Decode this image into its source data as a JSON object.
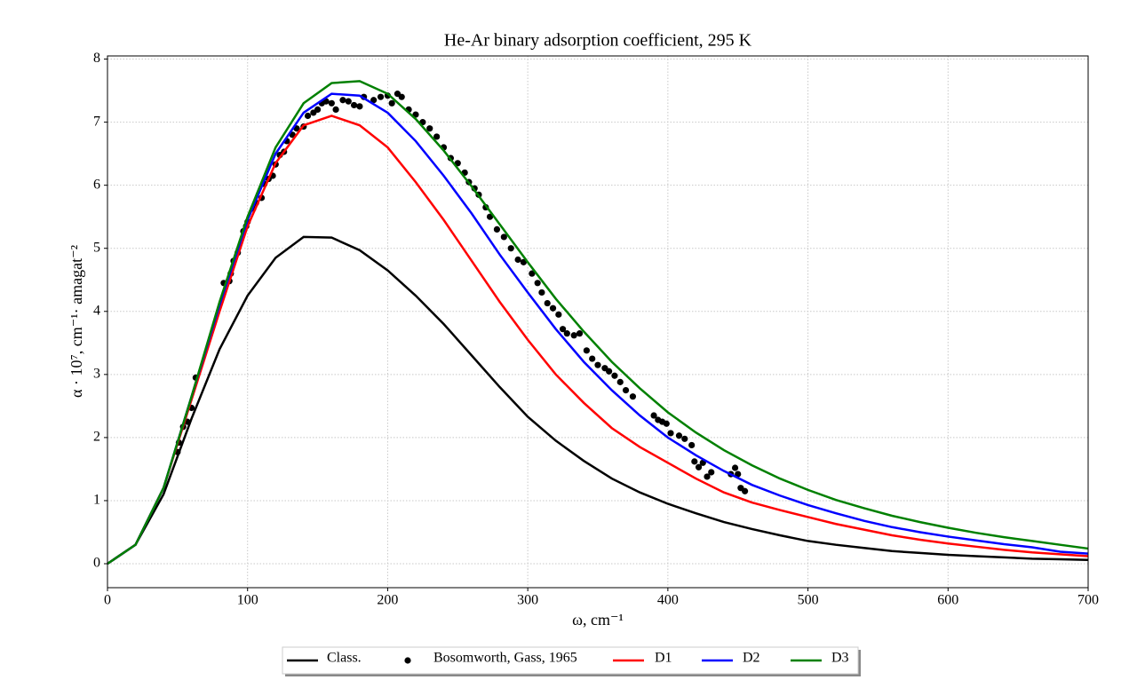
{
  "chart_data": {
    "type": "line",
    "title": "He-Ar binary adsorption coefficient, 295 K",
    "x_label": "ω, cm⁻¹",
    "y_label": "α · 10⁷, cm⁻¹· amagat⁻²",
    "xlim": [
      0,
      700
    ],
    "ylim": [
      -0.38,
      8.05
    ],
    "xticks": [
      0,
      100,
      200,
      300,
      400,
      500,
      600,
      700
    ],
    "yticks": [
      0,
      1,
      2,
      3,
      4,
      5,
      6,
      7,
      8
    ],
    "grid": true,
    "legend": "bottom",
    "x": [
      0,
      20,
      40,
      60,
      80,
      100,
      120,
      140,
      160,
      180,
      200,
      220,
      240,
      260,
      280,
      300,
      320,
      340,
      360,
      380,
      400,
      420,
      440,
      460,
      480,
      500,
      520,
      540,
      560,
      580,
      600,
      620,
      640,
      660,
      680,
      700
    ],
    "series": [
      {
        "name": "Class.",
        "color": "#000000",
        "type": "line",
        "values": [
          0,
          0.3,
          1.1,
          2.3,
          3.4,
          4.25,
          4.85,
          5.18,
          5.17,
          4.97,
          4.65,
          4.25,
          3.8,
          3.3,
          2.8,
          2.33,
          1.95,
          1.63,
          1.35,
          1.13,
          0.95,
          0.8,
          0.66,
          0.55,
          0.45,
          0.36,
          0.3,
          0.25,
          0.2,
          0.17,
          0.14,
          0.12,
          0.1,
          0.08,
          0.07,
          0.06
        ]
      },
      {
        "name": "Bosomworth, Gass, 1965",
        "color": "#000000",
        "type": "scatter",
        "x": [
          50,
          51,
          54,
          57,
          60,
          63,
          83,
          87,
          88,
          90,
          93,
          97,
          99,
          100,
          104,
          106,
          110,
          112,
          115,
          118,
          120,
          123,
          126,
          128,
          132,
          135,
          140,
          143,
          147,
          150,
          153,
          156,
          160,
          163,
          168,
          172,
          176,
          180,
          183,
          190,
          195,
          200,
          203,
          207,
          210,
          215,
          220,
          225,
          230,
          235,
          240,
          245,
          250,
          255,
          258,
          262,
          265,
          270,
          273,
          278,
          283,
          288,
          293,
          297,
          303,
          307,
          310,
          314,
          318,
          322,
          325,
          328,
          333,
          337,
          342,
          346,
          350,
          355,
          358,
          362,
          366,
          370,
          375,
          390,
          393,
          396,
          399,
          402,
          408,
          412,
          417,
          419,
          422,
          425,
          428,
          431,
          445,
          448,
          450,
          452,
          455
        ],
        "values": [
          1.77,
          1.92,
          2.17,
          2.25,
          2.47,
          2.95,
          4.45,
          4.48,
          4.6,
          4.8,
          4.93,
          5.27,
          5.35,
          5.42,
          5.63,
          5.72,
          5.8,
          6.02,
          6.1,
          6.15,
          6.33,
          6.48,
          6.53,
          6.7,
          6.8,
          6.9,
          6.93,
          7.1,
          7.15,
          7.2,
          7.3,
          7.33,
          7.3,
          7.2,
          7.35,
          7.33,
          7.27,
          7.25,
          7.4,
          7.35,
          7.4,
          7.42,
          7.3,
          7.45,
          7.4,
          7.2,
          7.12,
          7.0,
          6.9,
          6.77,
          6.6,
          6.43,
          6.35,
          6.2,
          6.05,
          5.95,
          5.85,
          5.65,
          5.5,
          5.3,
          5.18,
          5.0,
          4.82,
          4.78,
          4.6,
          4.45,
          4.3,
          4.13,
          4.05,
          3.95,
          3.72,
          3.65,
          3.62,
          3.65,
          3.38,
          3.25,
          3.15,
          3.1,
          3.05,
          2.98,
          2.88,
          2.75,
          2.65,
          2.35,
          2.28,
          2.25,
          2.22,
          2.07,
          2.03,
          1.98,
          1.88,
          1.62,
          1.53,
          1.6,
          1.38,
          1.45,
          1.42,
          1.52,
          1.42,
          1.2,
          1.15
        ]
      },
      {
        "name": "D1",
        "color": "#ff0000",
        "type": "line",
        "values": [
          0,
          0.3,
          1.2,
          2.6,
          4.0,
          5.35,
          6.35,
          6.95,
          7.1,
          6.95,
          6.6,
          6.05,
          5.45,
          4.8,
          4.15,
          3.55,
          3.0,
          2.55,
          2.15,
          1.85,
          1.6,
          1.35,
          1.13,
          0.97,
          0.85,
          0.74,
          0.63,
          0.54,
          0.45,
          0.38,
          0.32,
          0.27,
          0.22,
          0.18,
          0.15,
          0.12
        ]
      },
      {
        "name": "D2",
        "color": "#0000ff",
        "type": "line",
        "values": [
          0,
          0.3,
          1.2,
          2.65,
          4.1,
          5.45,
          6.5,
          7.15,
          7.45,
          7.42,
          7.15,
          6.7,
          6.15,
          5.55,
          4.9,
          4.3,
          3.72,
          3.2,
          2.75,
          2.35,
          2.0,
          1.72,
          1.47,
          1.25,
          1.08,
          0.93,
          0.8,
          0.68,
          0.58,
          0.5,
          0.43,
          0.37,
          0.31,
          0.26,
          0.19,
          0.16
        ]
      },
      {
        "name": "D3",
        "color": "#008000",
        "type": "line",
        "values": [
          0,
          0.3,
          1.2,
          2.65,
          4.15,
          5.5,
          6.6,
          7.3,
          7.62,
          7.65,
          7.45,
          7.05,
          6.55,
          5.98,
          5.38,
          4.78,
          4.2,
          3.68,
          3.2,
          2.78,
          2.4,
          2.08,
          1.8,
          1.56,
          1.35,
          1.17,
          1.01,
          0.88,
          0.76,
          0.66,
          0.57,
          0.49,
          0.42,
          0.36,
          0.3,
          0.24
        ]
      }
    ]
  }
}
